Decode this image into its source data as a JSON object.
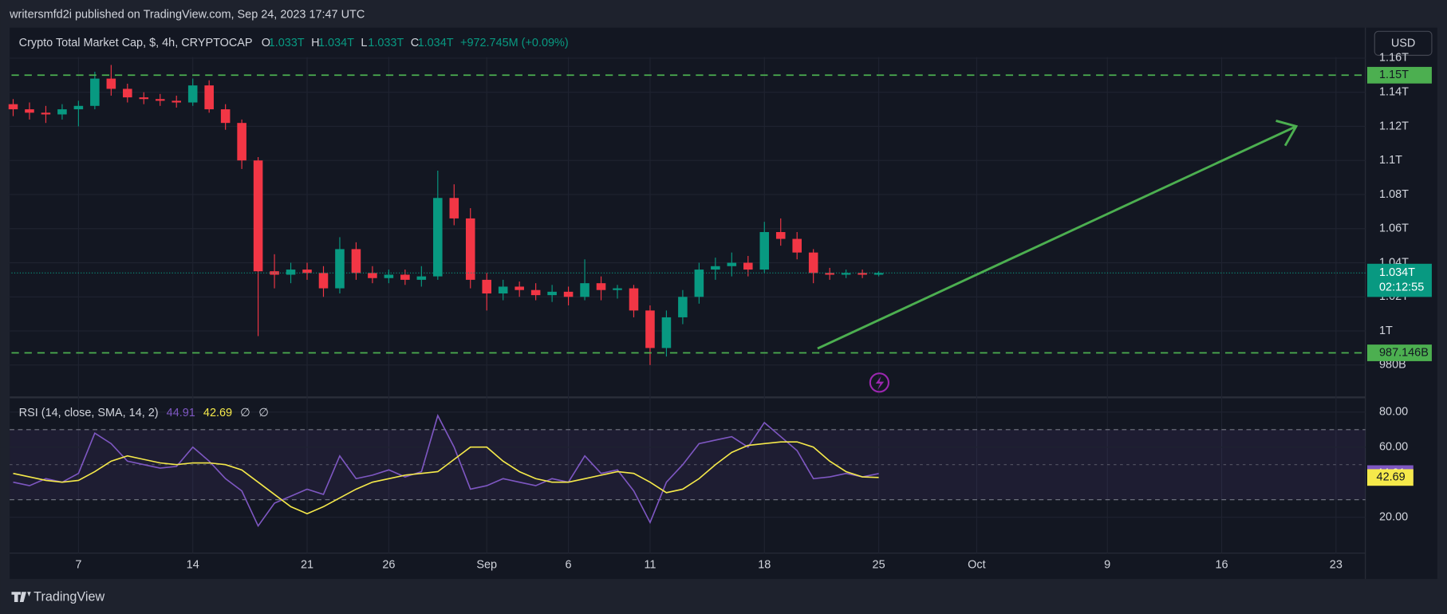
{
  "header": {
    "publisher": "writersmfd2i published on TradingView.com, Sep 24, 2023 17:47 UTC",
    "currency": "USD",
    "brand": "TradingView"
  },
  "chart_data": [
    {
      "type": "candlestick",
      "title": "Crypto Total Market Cap, $, 4h, CRYPTOCAP",
      "ohlc": [
        {
          "key": "O",
          "value": "1.033T"
        },
        {
          "key": "H",
          "value": "1.034T"
        },
        {
          "key": "L",
          "value": "1.033T"
        },
        {
          "key": "C",
          "value": "1.034T"
        }
      ],
      "change": "+972.745M (+0.09%)",
      "x": [
        2,
        3,
        4,
        5,
        6,
        7,
        8,
        9,
        10,
        11,
        12,
        13,
        14,
        15,
        16,
        17,
        18,
        19,
        20,
        21,
        22,
        23,
        24,
        25,
        26,
        27,
        28,
        29,
        30,
        31,
        32,
        33,
        34,
        35,
        36,
        37,
        38,
        39,
        40,
        41,
        42,
        43,
        44,
        45,
        46,
        47,
        48,
        49,
        50,
        51,
        52,
        53,
        54,
        55
      ],
      "open": [
        1.133,
        1.13,
        1.128,
        1.127,
        1.13,
        1.132,
        1.148,
        1.142,
        1.137,
        1.136,
        1.135,
        1.134,
        1.144,
        1.13,
        1.122,
        1.1,
        1.035,
        1.033,
        1.036,
        1.034,
        1.025,
        1.048,
        1.034,
        1.031,
        1.033,
        1.03,
        1.032,
        1.078,
        1.066,
        1.03,
        1.022,
        1.026,
        1.024,
        1.021,
        1.023,
        1.02,
        1.028,
        1.024,
        1.025,
        1.012,
        0.99,
        1.008,
        1.02,
        1.036,
        1.038,
        1.04,
        1.036,
        1.058,
        1.054,
        1.046,
        1.034,
        1.033,
        1.034,
        1.033
      ],
      "high": [
        1.136,
        1.134,
        1.132,
        1.133,
        1.135,
        1.152,
        1.156,
        1.145,
        1.14,
        1.139,
        1.138,
        1.148,
        1.147,
        1.133,
        1.124,
        1.102,
        1.045,
        1.04,
        1.04,
        1.038,
        1.055,
        1.052,
        1.038,
        1.036,
        1.036,
        1.038,
        1.094,
        1.086,
        1.072,
        1.034,
        1.03,
        1.029,
        1.028,
        1.027,
        1.026,
        1.042,
        1.032,
        1.027,
        1.027,
        1.015,
        1.012,
        1.024,
        1.04,
        1.043,
        1.046,
        1.044,
        1.064,
        1.066,
        1.058,
        1.048,
        1.037,
        1.036,
        1.036,
        1.035
      ],
      "low": [
        1.126,
        1.124,
        1.122,
        1.124,
        1.12,
        1.13,
        1.138,
        1.134,
        1.133,
        1.132,
        1.131,
        1.132,
        1.128,
        1.118,
        1.095,
        0.997,
        1.025,
        1.028,
        1.03,
        1.02,
        1.022,
        1.03,
        1.028,
        1.028,
        1.027,
        1.026,
        1.03,
        1.062,
        1.025,
        1.012,
        1.018,
        1.02,
        1.018,
        1.017,
        1.015,
        1.018,
        1.018,
        1.019,
        1.008,
        0.98,
        0.985,
        1.004,
        1.016,
        1.03,
        1.032,
        1.032,
        1.034,
        1.05,
        1.042,
        1.028,
        1.03,
        1.031,
        1.031,
        1.032
      ],
      "close": [
        1.13,
        1.128,
        1.127,
        1.13,
        1.132,
        1.148,
        1.142,
        1.137,
        1.136,
        1.135,
        1.134,
        1.144,
        1.13,
        1.122,
        1.1,
        1.035,
        1.033,
        1.036,
        1.034,
        1.025,
        1.048,
        1.034,
        1.031,
        1.033,
        1.03,
        1.032,
        1.078,
        1.066,
        1.03,
        1.022,
        1.026,
        1.024,
        1.021,
        1.023,
        1.02,
        1.028,
        1.024,
        1.025,
        1.012,
        0.99,
        1.008,
        1.02,
        1.036,
        1.038,
        1.04,
        1.036,
        1.058,
        1.054,
        1.046,
        1.034,
        1.033,
        1.034,
        1.033,
        1.034
      ],
      "up_color": "#089981",
      "down_color": "#f23645",
      "xlim": [
        1.9,
        84.8
      ],
      "xticks": [
        {
          "value": 6,
          "label": "7"
        },
        {
          "value": 13,
          "label": "14"
        },
        {
          "value": 20,
          "label": "21"
        },
        {
          "value": 25,
          "label": "26"
        },
        {
          "value": 31,
          "label": "Sep"
        },
        {
          "value": 36,
          "label": "6"
        },
        {
          "value": 41,
          "label": "11"
        },
        {
          "value": 48,
          "label": "18"
        },
        {
          "value": 55,
          "label": "25"
        },
        {
          "value": 61,
          "label": "Oct"
        },
        {
          "value": 69,
          "label": "9"
        },
        {
          "value": 76,
          "label": "16"
        },
        {
          "value": 83,
          "label": "23"
        }
      ],
      "ylim": [
        0.9616,
        1.1768
      ],
      "yticks": [
        {
          "value": 0.98,
          "label": "980B"
        },
        {
          "value": 1,
          "label": "1T"
        },
        {
          "value": 1.02,
          "label": "1.02T"
        },
        {
          "value": 1.04,
          "label": "1.04T"
        },
        {
          "value": 1.06,
          "label": "1.06T"
        },
        {
          "value": 1.08,
          "label": "1.08T"
        },
        {
          "value": 1.1,
          "label": "1.1T"
        },
        {
          "value": 1.12,
          "label": "1.12T"
        },
        {
          "value": 1.14,
          "label": "1.14T"
        },
        {
          "value": 1.16,
          "label": "1.16T"
        }
      ],
      "levels": [
        {
          "value": 1.15,
          "label": "1.15T"
        },
        {
          "value": 0.987146,
          "label": "987.146B"
        }
      ],
      "level_color": "#4caf50",
      "last_label": "1.034T",
      "countdown": "02:12:55",
      "grid": true
    },
    {
      "type": "line",
      "title": "RSI (14, close, SMA, 14, 2)",
      "extras": [
        "∅",
        "∅"
      ],
      "x": [
        2,
        3,
        4,
        5,
        6,
        7,
        8,
        9,
        10,
        11,
        12,
        13,
        14,
        15,
        16,
        17,
        18,
        19,
        20,
        21,
        22,
        23,
        24,
        25,
        26,
        27,
        28,
        29,
        30,
        31,
        32,
        33,
        34,
        35,
        36,
        37,
        38,
        39,
        40,
        41,
        42,
        43,
        44,
        45,
        46,
        47,
        48,
        49,
        50,
        51,
        52,
        53,
        54,
        55
      ],
      "series": [
        {
          "color": "#7e57c2",
          "values": [
            40,
            38,
            42,
            40,
            45,
            68,
            62,
            52,
            50,
            48,
            49,
            60,
            52,
            42,
            35,
            15,
            28,
            32,
            36,
            33,
            55,
            42,
            44,
            47,
            43,
            46,
            78,
            60,
            36,
            38,
            42,
            40,
            38,
            42,
            40,
            55,
            45,
            47,
            35,
            17,
            40,
            50,
            62,
            64,
            66,
            60,
            74,
            66,
            58,
            42,
            43,
            45,
            43,
            44.91
          ]
        },
        {
          "color": "#f5e94a",
          "values": [
            45,
            43,
            41,
            40,
            41,
            46,
            52,
            55,
            53,
            51,
            50,
            51,
            51,
            50,
            47,
            40,
            33,
            26,
            22,
            26,
            31,
            36,
            40,
            42,
            44,
            45,
            46,
            53,
            60,
            60,
            52,
            46,
            42,
            40,
            40,
            42,
            44,
            46,
            45,
            40,
            34,
            36,
            42,
            50,
            57,
            61,
            62,
            63,
            63,
            60,
            52,
            46,
            43,
            42.69
          ]
        }
      ],
      "xlim": [
        1.9,
        84.8
      ],
      "ylim": [
        -0.5,
        87.9
      ],
      "yticks": [
        {
          "value": 20,
          "label": "20.00"
        },
        {
          "value": 60,
          "label": "60.00"
        },
        {
          "value": 80,
          "label": "80.00"
        }
      ],
      "band": [
        30,
        70
      ],
      "midline": 50
    }
  ]
}
